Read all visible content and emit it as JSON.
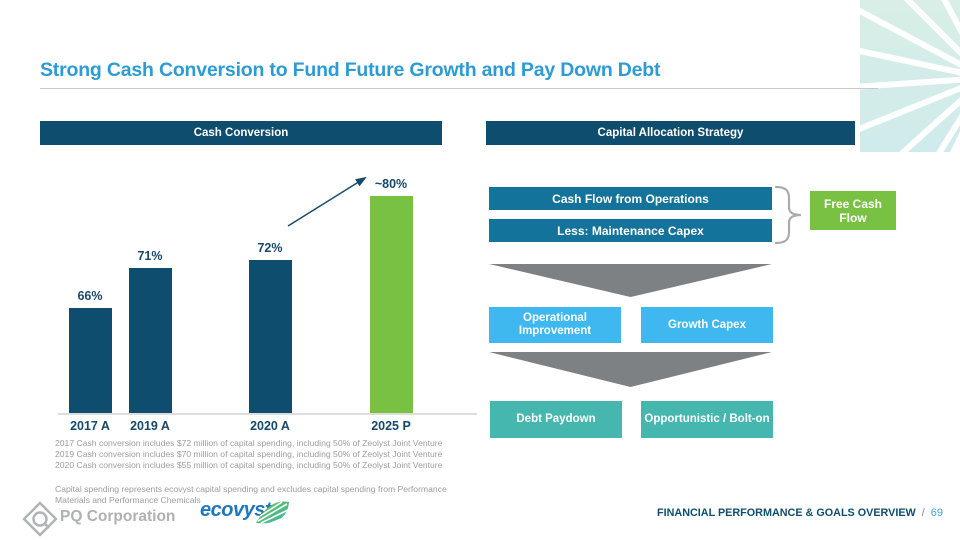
{
  "slide": {
    "title": "Strong Cash Conversion to Fund Future Growth and Pay Down Debt"
  },
  "palette": {
    "title_blue": "#2E9BD5",
    "navy": "#0E4D6E",
    "steel_blue": "#14739A",
    "sky_blue": "#3EB8EF",
    "teal": "#45B7AE",
    "green": "#79C143",
    "funnel_gray": "#7E8184"
  },
  "cash_conversion": {
    "header": "Cash Conversion",
    "footnotes": [
      "2017 Cash conversion includes $72 million of capital spending, including 50% of Zeolyst Joint Venture",
      "2019 Cash conversion includes $70 million of capital spending, including 50% of Zeolyst Joint Venture",
      "2020 Cash conversion includes $55 million of capital spending, including 50% of Zeolyst Joint Venture"
    ],
    "disclaimer": "Capital spending represents ecovyst capital spending and excludes capital spending from Performance Materials and Performance Chemicals"
  },
  "chart_data": {
    "type": "bar",
    "title": "Cash Conversion",
    "categories": [
      "2017 A",
      "2019 A",
      "2020 A",
      "2025 P"
    ],
    "values": [
      66,
      71,
      72,
      80
    ],
    "value_labels": [
      "66%",
      "71%",
      "72%",
      "~80%"
    ],
    "bar_colors": [
      "#0E4D6E",
      "#0E4D6E",
      "#0E4D6E",
      "#79C143"
    ],
    "ylim": [
      53,
      85
    ],
    "grid": false,
    "legend": false,
    "annotation": "arrow from 2020 A bar toward ~80% projected value"
  },
  "capital_allocation": {
    "header": "Capital Allocation Strategy",
    "sources": [
      "Cash Flow from Operations",
      "Less: Maintenance Capex"
    ],
    "result": "Free Cash Flow",
    "uses_tier1": [
      "Operational Improvement",
      "Growth Capex"
    ],
    "uses_tier2": [
      "Debt Paydown",
      "Opportunistic / Bolt-on"
    ]
  },
  "footer": {
    "pq_logo": "PQ Corporation",
    "ecovyst_logo": "ecovyst",
    "section_title": "FINANCIAL PERFORMANCE & GOALS OVERVIEW",
    "separator": "/",
    "page_number": "69"
  }
}
